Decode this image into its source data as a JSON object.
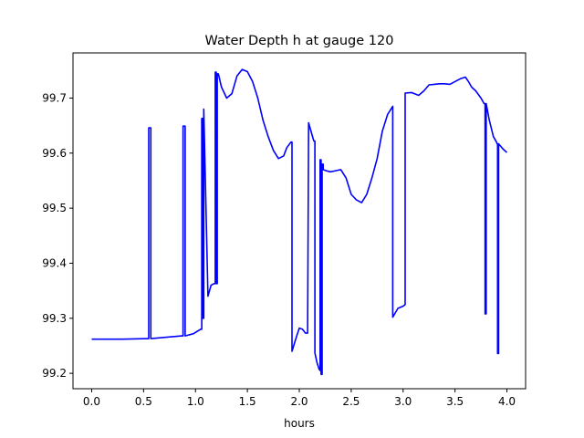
{
  "chart_data": {
    "type": "line",
    "title": "Water Depth h at gauge 120",
    "xlabel": "hours",
    "ylabel": "",
    "xlim": [
      -0.18,
      4.18
    ],
    "ylim": [
      99.172,
      99.782
    ],
    "xticks": [
      0.0,
      0.5,
      1.0,
      1.5,
      2.0,
      2.5,
      3.0,
      3.5,
      4.0
    ],
    "xtick_labels": [
      "0.0",
      "0.5",
      "1.0",
      "1.5",
      "2.0",
      "2.5",
      "3.0",
      "3.5",
      "4.0"
    ],
    "yticks": [
      99.2,
      99.3,
      99.4,
      99.5,
      99.6,
      99.7
    ],
    "ytick_labels": [
      "99.2",
      "99.3",
      "99.4",
      "99.5",
      "99.6",
      "99.7"
    ],
    "grid": false,
    "legend": "none",
    "series": [
      {
        "color": "#0000ff",
        "x": [
          0.0,
          0.3,
          0.54,
          0.55,
          0.55,
          0.57,
          0.57,
          0.87,
          0.88,
          0.88,
          0.9,
          0.9,
          0.98,
          1.05,
          1.06,
          1.06,
          1.07,
          1.07,
          1.08,
          1.08,
          1.12,
          1.15,
          1.18,
          1.19,
          1.19,
          1.2,
          1.2,
          1.21,
          1.21,
          1.22,
          1.25,
          1.3,
          1.35,
          1.4,
          1.45,
          1.5,
          1.55,
          1.6,
          1.65,
          1.7,
          1.75,
          1.8,
          1.85,
          1.88,
          1.92,
          1.93,
          1.93,
          1.97,
          2.0,
          2.03,
          2.06,
          2.08,
          2.09,
          2.09,
          2.14,
          2.15,
          2.15,
          2.17,
          2.19,
          2.2,
          2.2,
          2.21,
          2.21,
          2.22,
          2.22,
          2.23,
          2.23,
          2.26,
          2.3,
          2.35,
          2.4,
          2.45,
          2.5,
          2.55,
          2.6,
          2.65,
          2.7,
          2.75,
          2.8,
          2.85,
          2.9,
          2.9,
          2.95,
          3.0,
          3.02,
          3.02,
          3.08,
          3.15,
          3.2,
          3.25,
          3.3,
          3.35,
          3.4,
          3.45,
          3.5,
          3.55,
          3.6,
          3.63,
          3.66,
          3.7,
          3.75,
          3.78,
          3.79,
          3.79,
          3.8,
          3.8,
          3.83,
          3.87,
          3.9,
          3.91,
          3.91,
          3.92,
          3.92,
          3.96,
          4.0
        ],
        "y": [
          99.262,
          99.262,
          99.263,
          99.263,
          99.646,
          99.646,
          99.263,
          99.268,
          99.268,
          99.649,
          99.649,
          99.268,
          99.272,
          99.28,
          99.28,
          99.663,
          99.663,
          99.3,
          99.3,
          99.68,
          99.34,
          99.36,
          99.363,
          99.363,
          99.747,
          99.747,
          99.363,
          99.363,
          99.744,
          99.744,
          99.72,
          99.7,
          99.708,
          99.74,
          99.752,
          99.748,
          99.73,
          99.7,
          99.66,
          99.63,
          99.605,
          99.59,
          99.595,
          99.61,
          99.62,
          99.62,
          99.24,
          99.265,
          99.282,
          99.28,
          99.273,
          99.273,
          99.655,
          99.655,
          99.622,
          99.622,
          99.237,
          99.22,
          99.208,
          99.205,
          99.588,
          99.588,
          99.198,
          99.198,
          99.58,
          99.58,
          99.57,
          99.568,
          99.566,
          99.568,
          99.57,
          99.555,
          99.525,
          99.515,
          99.51,
          99.525,
          99.555,
          99.59,
          99.64,
          99.67,
          99.685,
          99.302,
          99.318,
          99.322,
          99.325,
          99.709,
          99.71,
          99.705,
          99.713,
          99.724,
          99.725,
          99.726,
          99.726,
          99.725,
          99.73,
          99.735,
          99.738,
          99.73,
          99.72,
          99.713,
          99.7,
          99.69,
          99.69,
          99.308,
          99.308,
          99.69,
          99.66,
          99.63,
          99.62,
          99.615,
          99.236,
          99.236,
          99.617,
          99.608,
          99.601
        ]
      }
    ]
  }
}
